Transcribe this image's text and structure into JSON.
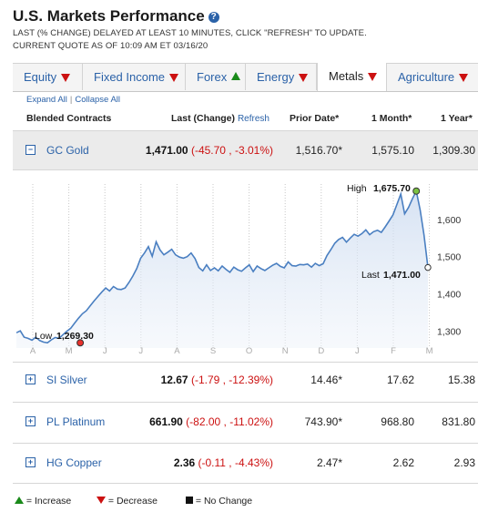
{
  "header": {
    "title": "U.S. Markets Performance",
    "help_icon": "?",
    "notice_line1": "LAST (% CHANGE) DELAYED AT LEAST 10 MINUTES, CLICK \"REFRESH\" TO UPDATE.",
    "notice_line2": "CURRENT QUOTE AS OF 10:09 AM ET 03/16/20"
  },
  "tabs": [
    {
      "label": "Equity",
      "trend": "down"
    },
    {
      "label": "Fixed Income",
      "trend": "down"
    },
    {
      "label": "Forex",
      "trend": "up"
    },
    {
      "label": "Energy",
      "trend": "down"
    },
    {
      "label": "Metals",
      "trend": "down",
      "active": true
    },
    {
      "label": "Agriculture",
      "trend": "down"
    }
  ],
  "links": {
    "expand": "Expand All",
    "separator": "|",
    "collapse": "Collapse All"
  },
  "columns": {
    "contracts": "Blended Contracts",
    "last": "Last (Change)",
    "refresh": "Refresh",
    "prior": "Prior Date*",
    "month": "1 Month*",
    "year": "1 Year*"
  },
  "rows": [
    {
      "toggle": "−",
      "name": "GC Gold",
      "last": "1,471.00",
      "change": "(-45.70 , -3.01%)",
      "prior": "1,516.70*",
      "month": "1,575.10",
      "year": "1,309.30"
    },
    {
      "toggle": "+",
      "name": "SI Silver",
      "last": "12.67",
      "change": "(-1.79 , -12.39%)",
      "prior": "14.46*",
      "month": "17.62",
      "year": "15.38"
    },
    {
      "toggle": "+",
      "name": "PL Platinum",
      "last": "661.90",
      "change": "(-82.00 , -11.02%)",
      "prior": "743.90*",
      "month": "968.80",
      "year": "831.80"
    },
    {
      "toggle": "+",
      "name": "HG Copper",
      "last": "2.36",
      "change": "(-0.11 , -4.43%)",
      "prior": "2.47*",
      "month": "2.62",
      "year": "2.93"
    }
  ],
  "chart": {
    "high_label": "High",
    "high_value": "1,675.70",
    "low_label": "Low",
    "low_value": "1,269.30",
    "last_label": "Last",
    "last_value": "1,471.00",
    "y_ticks": [
      "1,600",
      "1,500",
      "1,400",
      "1,300"
    ],
    "x_ticks": [
      "A",
      "M",
      "J",
      "J",
      "A",
      "S",
      "O",
      "N",
      "D",
      "J",
      "F",
      "M"
    ]
  },
  "chart_data": {
    "type": "area",
    "title": "",
    "ylim": [
      1255,
      1690
    ],
    "x_ticks": [
      "A",
      "M",
      "J",
      "J",
      "A",
      "S",
      "O",
      "N",
      "D",
      "J",
      "F",
      "M"
    ],
    "y_ticks": [
      1600,
      1500,
      1400,
      1300
    ],
    "series": [
      {
        "values": [
          1296,
          1301,
          1284,
          1281,
          1276,
          1284,
          1275,
          1271,
          1269,
          1277,
          1283,
          1281,
          1291,
          1300,
          1308,
          1322,
          1335,
          1347,
          1355,
          1368,
          1381,
          1393,
          1405,
          1416,
          1408,
          1420,
          1413,
          1412,
          1416,
          1431,
          1448,
          1468,
          1496,
          1510,
          1527,
          1501,
          1540,
          1518,
          1505,
          1512,
          1520,
          1505,
          1499,
          1496,
          1500,
          1510,
          1495,
          1471,
          1462,
          1478,
          1463,
          1470,
          1462,
          1475,
          1466,
          1458,
          1472,
          1465,
          1461,
          1470,
          1478,
          1460,
          1475,
          1468,
          1463,
          1470,
          1477,
          1482,
          1474,
          1470,
          1486,
          1476,
          1475,
          1479,
          1478,
          1480,
          1472,
          1482,
          1476,
          1481,
          1503,
          1519,
          1536,
          1546,
          1552,
          1539,
          1550,
          1560,
          1555,
          1562,
          1572,
          1559,
          1567,
          1571,
          1565,
          1580,
          1596,
          1612,
          1640,
          1668,
          1615,
          1632,
          1655,
          1676,
          1625,
          1558,
          1471
        ],
        "color": "#4a7fc1"
      }
    ],
    "high": 1675.7,
    "low": 1269.3,
    "last": 1471.0,
    "grid": "vertical-dotted"
  },
  "legend": {
    "increase": "= Increase",
    "decrease": "= Decrease",
    "nochange": "= No Change"
  },
  "colors": {
    "link": "#2b62a8",
    "down": "#cc1111",
    "up": "#1a8a1a",
    "line": "#4a7fc1"
  }
}
